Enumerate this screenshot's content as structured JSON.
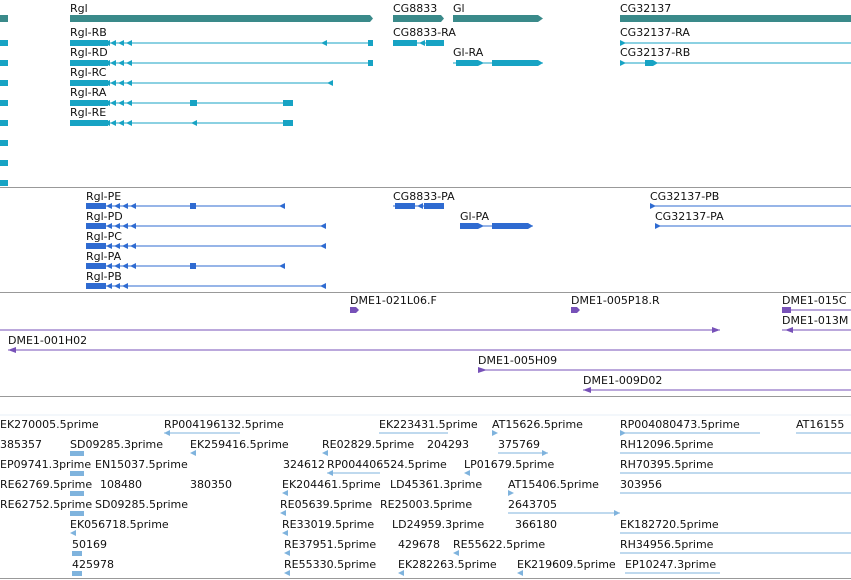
{
  "colors": {
    "gene_bar": "#3a8a8a",
    "transcript": "#17a3c4",
    "cdna": "#2f6bd1",
    "clone": "#7751b8",
    "est": "#7fb3dd",
    "separator": "#999999"
  },
  "genes": [
    {
      "label": "Rgl"
    },
    {
      "label": "CG8833"
    },
    {
      "label": "Gl"
    },
    {
      "label": "CG32137"
    }
  ],
  "transcripts": [
    {
      "label": "Rgl-RB"
    },
    {
      "label": "Rgl-RD"
    },
    {
      "label": "Rgl-RC"
    },
    {
      "label": "Rgl-RA"
    },
    {
      "label": "Rgl-RE"
    },
    {
      "label": "CG8833-RA"
    },
    {
      "label": "Gl-RA"
    },
    {
      "label": "CG32137-RA"
    },
    {
      "label": "CG32137-RB"
    }
  ],
  "cdnas": [
    {
      "label": "Rgl-PE"
    },
    {
      "label": "Rgl-PD"
    },
    {
      "label": "Rgl-PC"
    },
    {
      "label": "Rgl-PA"
    },
    {
      "label": "Rgl-PB"
    },
    {
      "label": "CG8833-PA"
    },
    {
      "label": "Gl-PA"
    },
    {
      "label": "CG32137-PB"
    },
    {
      "label": "CG32137-PA"
    }
  ],
  "clones": [
    {
      "label": "DME1-021L06.F"
    },
    {
      "label": "DME1-005P18.R"
    },
    {
      "label": "DME1-015C"
    },
    {
      "label": "DME1-013M"
    },
    {
      "label": "DME1-001H02"
    },
    {
      "label": "DME1-005H09"
    },
    {
      "label": "DME1-009D02"
    }
  ],
  "ests": [
    {
      "label": "EK270005.5prime"
    },
    {
      "label": "RP004196132.5prime"
    },
    {
      "label": "EK223431.5prime"
    },
    {
      "label": "AT15626.5prime"
    },
    {
      "label": "RP004080473.5prime"
    },
    {
      "label": "AT16155"
    },
    {
      "label": "385357"
    },
    {
      "label": "SD09285.3prime"
    },
    {
      "label": "EK259416.5prime"
    },
    {
      "label": "RE02829.5prime"
    },
    {
      "label": "204293"
    },
    {
      "label": "375769"
    },
    {
      "label": "RH12096.5prime"
    },
    {
      "label": "EP09741.3prime"
    },
    {
      "label": "EN15037.5prime"
    },
    {
      "label": "324612"
    },
    {
      "label": "RP004406524.5prime"
    },
    {
      "label": "LP01679.5prime"
    },
    {
      "label": "RH70395.5prime"
    },
    {
      "label": "RE62769.5prime"
    },
    {
      "label": "108480"
    },
    {
      "label": "380350"
    },
    {
      "label": "EK204461.5prime"
    },
    {
      "label": "LD45361.3prime"
    },
    {
      "label": "AT15406.5prime"
    },
    {
      "label": "303956"
    },
    {
      "label": "RE62752.5prime"
    },
    {
      "label": "SD09285.5prime"
    },
    {
      "label": "RE05639.5prime"
    },
    {
      "label": "RE25003.5prime"
    },
    {
      "label": "2643705"
    },
    {
      "label": "EK056718.5prime"
    },
    {
      "label": "RE33019.5prime"
    },
    {
      "label": "LD24959.3prime"
    },
    {
      "label": "366180"
    },
    {
      "label": "EK182720.5prime"
    },
    {
      "label": "50169"
    },
    {
      "label": "RE37951.5prime"
    },
    {
      "label": "429678"
    },
    {
      "label": "RE55622.5prime"
    },
    {
      "label": "RH34956.5prime"
    },
    {
      "label": "425978"
    },
    {
      "label": "RE55330.5prime"
    },
    {
      "label": "EK282263.5prime"
    },
    {
      "label": "EK219609.5prime"
    },
    {
      "label": "EP10247.3prime"
    }
  ]
}
